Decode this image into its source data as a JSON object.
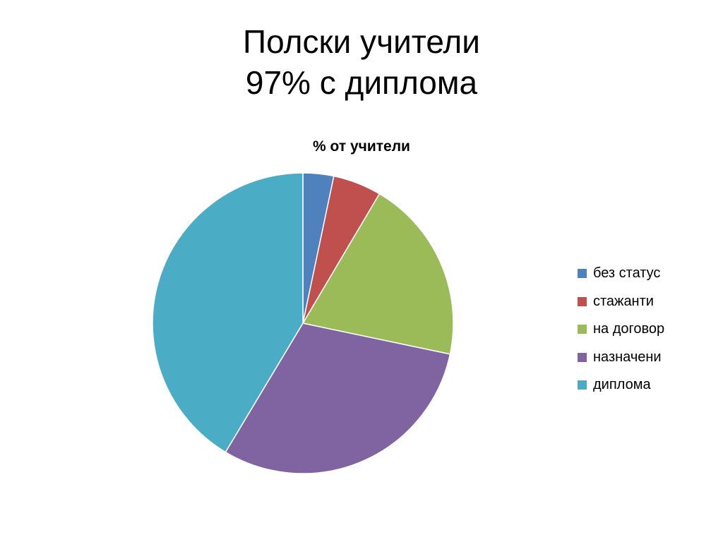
{
  "slide": {
    "title_line1": "Полски учители",
    "title_line2": "97% с диплома"
  },
  "chart_data": {
    "type": "pie",
    "title": "% от учители",
    "legend_position": "right",
    "slices": [
      {
        "label": "без статус",
        "value": 3.3,
        "color": "#4F81BD"
      },
      {
        "label": "стажанти",
        "value": 5.2,
        "color": "#C0504D"
      },
      {
        "label": "на договор",
        "value": 19.8,
        "color": "#9BBB59"
      },
      {
        "label": "назначени",
        "value": 30.3,
        "color": "#8064A2"
      },
      {
        "label": "диплома",
        "value": 41.4,
        "color": "#4BACC6"
      }
    ]
  }
}
